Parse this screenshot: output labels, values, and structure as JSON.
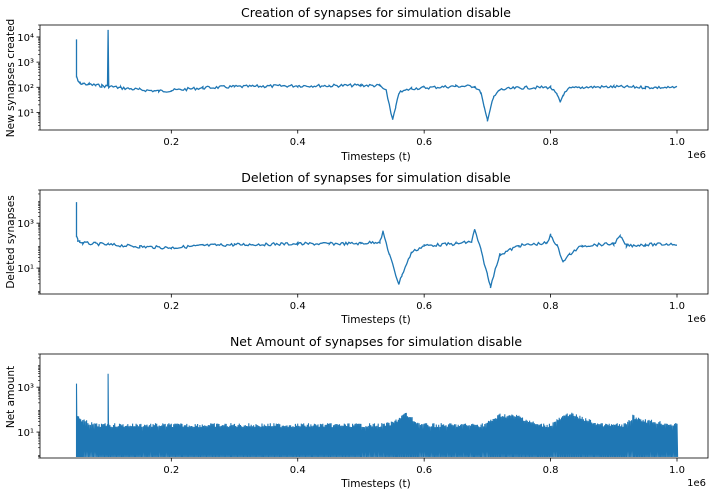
{
  "figure": {
    "background": "#ffffff",
    "line_color": "#1f77b4"
  },
  "chart_data": [
    {
      "type": "line",
      "title": "Creation of synapses for simulation disable",
      "xlabel": "Timesteps (t)",
      "ylabel": "New synapses created",
      "x_offset_label": "1e6",
      "xlim": [
        0.0,
        1.0
      ],
      "x_ticks": [
        0.2,
        0.4,
        0.6,
        0.8,
        1.0
      ],
      "x_tick_labels": [
        "0.2",
        "0.4",
        "0.6",
        "0.8",
        "1.0"
      ],
      "yscale": "log",
      "ylim": [
        2,
        30000
      ],
      "y_ticks": [
        10,
        100,
        1000,
        10000
      ],
      "y_tick_labels": [
        "10¹",
        "10²",
        "10³",
        "10⁴"
      ],
      "grid": false,
      "series": [
        {
          "x": [
            0.05,
            0.05,
            0.052,
            0.055,
            0.06,
            0.07,
            0.08,
            0.09,
            0.099,
            0.1,
            0.101,
            0.12,
            0.15,
            0.18,
            0.2,
            0.25,
            0.3,
            0.35,
            0.4,
            0.45,
            0.5,
            0.53,
            0.54,
            0.545,
            0.55,
            0.555,
            0.56,
            0.58,
            0.6,
            0.65,
            0.68,
            0.69,
            0.695,
            0.7,
            0.705,
            0.71,
            0.72,
            0.75,
            0.8,
            0.81,
            0.815,
            0.82,
            0.83,
            0.85,
            0.9,
            0.95,
            1.0
          ],
          "y": [
            8000,
            250,
            180,
            150,
            140,
            130,
            120,
            115,
            110,
            18000,
            110,
            95,
            80,
            70,
            75,
            95,
            105,
            110,
            115,
            115,
            120,
            115,
            70,
            20,
            5,
            15,
            60,
            90,
            95,
            110,
            110,
            60,
            15,
            5,
            15,
            40,
            80,
            95,
            100,
            50,
            25,
            50,
            90,
            100,
            105,
            100,
            95
          ]
        }
      ]
    },
    {
      "type": "line",
      "title": "Deletion of synapses for simulation disable",
      "xlabel": "Timesteps (t)",
      "ylabel": "Deleted synapses",
      "x_offset_label": "1e6",
      "xlim": [
        0.0,
        1.0
      ],
      "x_ticks": [
        0.2,
        0.4,
        0.6,
        0.8,
        1.0
      ],
      "x_tick_labels": [
        "0.2",
        "0.4",
        "0.6",
        "0.8",
        "1.0"
      ],
      "yscale": "log",
      "ylim": [
        0.7,
        30000
      ],
      "y_ticks": [
        10,
        1000
      ],
      "y_tick_labels": [
        "10¹",
        "10³"
      ],
      "grid": false,
      "series": [
        {
          "x": [
            0.05,
            0.05,
            0.052,
            0.055,
            0.06,
            0.08,
            0.1,
            0.15,
            0.2,
            0.25,
            0.3,
            0.35,
            0.4,
            0.45,
            0.5,
            0.53,
            0.535,
            0.545,
            0.555,
            0.56,
            0.565,
            0.58,
            0.6,
            0.65,
            0.675,
            0.68,
            0.69,
            0.7,
            0.705,
            0.71,
            0.72,
            0.75,
            0.795,
            0.8,
            0.81,
            0.82,
            0.83,
            0.85,
            0.9,
            0.91,
            0.92,
            0.95,
            1.0
          ],
          "y": [
            10000,
            250,
            180,
            150,
            130,
            120,
            110,
            90,
            80,
            100,
            110,
            115,
            120,
            120,
            125,
            150,
            400,
            40,
            5,
            2,
            5,
            50,
            100,
            120,
            150,
            500,
            60,
            5,
            1.5,
            5,
            40,
            100,
            130,
            300,
            100,
            20,
            40,
            100,
            120,
            250,
            100,
            110,
            120
          ]
        }
      ]
    },
    {
      "type": "line",
      "title": "Net Amount of synapses for simulation disable",
      "xlabel": "Timesteps (t)",
      "ylabel": "Net amount",
      "x_offset_label": "1e6",
      "xlim": [
        0.0,
        1.0
      ],
      "x_ticks": [
        0.2,
        0.4,
        0.6,
        0.8,
        1.0
      ],
      "x_tick_labels": [
        "0.2",
        "0.4",
        "0.6",
        "0.8",
        "1.0"
      ],
      "yscale": "log",
      "ylim": [
        0.7,
        30000
      ],
      "y_ticks": [
        10,
        1000
      ],
      "y_tick_labels": [
        "10¹",
        "10³"
      ],
      "grid": false,
      "series": [
        {
          "x": [
            0.05,
            0.05,
            0.055,
            0.06,
            0.07,
            0.08,
            0.099,
            0.1,
            0.101,
            0.15,
            0.2,
            0.3,
            0.4,
            0.5,
            0.535,
            0.55,
            0.57,
            0.59,
            0.6,
            0.65,
            0.675,
            0.69,
            0.7,
            0.72,
            0.75,
            0.78,
            0.8,
            0.81,
            0.83,
            0.85,
            0.88,
            0.9,
            0.92,
            0.93,
            0.95,
            1.0
          ],
          "y": [
            1500,
            60,
            50,
            40,
            30,
            25,
            25,
            5000,
            25,
            25,
            25,
            25,
            25,
            25,
            25,
            30,
            80,
            30,
            25,
            25,
            25,
            25,
            30,
            70,
            60,
            25,
            25,
            40,
            80,
            50,
            25,
            25,
            25,
            60,
            40,
            25
          ]
        }
      ]
    }
  ]
}
